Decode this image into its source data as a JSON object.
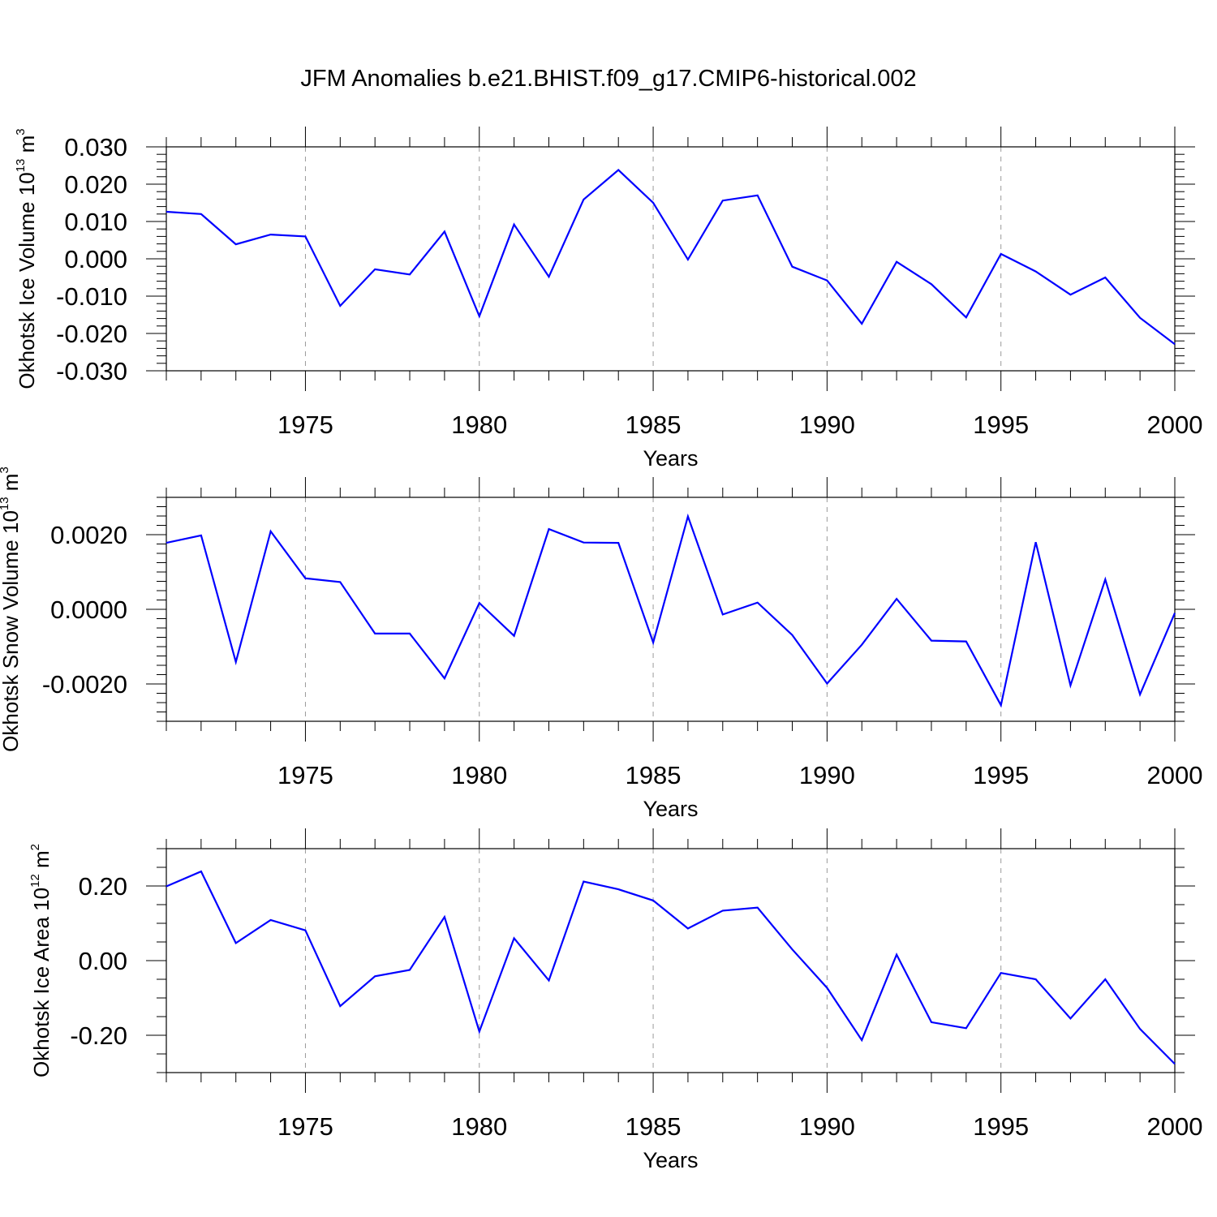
{
  "figure": {
    "title": "JFM Anomalies b.e21.BHIST.f09_g17.CMIP6-historical.002"
  },
  "chart_data": [
    {
      "type": "line",
      "xlabel": "Years",
      "ylabel": {
        "text": "Okhotsk Ice Volume 10",
        "exponent": "13",
        "unit": " m",
        "unit_exponent": "3"
      },
      "xlim": [
        1971,
        2000
      ],
      "ylim": [
        -0.03,
        0.03
      ],
      "xticks": [
        1975,
        1980,
        1985,
        1990,
        1995,
        2000
      ],
      "xtick_labels": [
        "1975",
        "1980",
        "1985",
        "1990",
        "1995",
        "2000"
      ],
      "yticks": [
        0.03,
        0.02,
        0.01,
        0.0,
        -0.01,
        -0.02,
        -0.03
      ],
      "ytick_labels": [
        "0.030",
        "0.020",
        "0.010",
        "0.000",
        "-0.010",
        "-0.020",
        "-0.030"
      ],
      "y_minor_step": 0.002,
      "grid": "dashed vertical lines at major x ticks",
      "series": [
        {
          "color": "#0000ff",
          "x": [
            1971,
            1972,
            1973,
            1974,
            1975,
            1976,
            1977,
            1978,
            1979,
            1980,
            1981,
            1982,
            1983,
            1984,
            1985,
            1986,
            1987,
            1988,
            1989,
            1990,
            1991,
            1992,
            1993,
            1994,
            1995,
            1996,
            1997,
            1998,
            1999,
            2000
          ],
          "y": [
            0.0126,
            0.012,
            0.0039,
            0.0065,
            0.006,
            -0.0126,
            -0.0028,
            -0.0042,
            0.0073,
            -0.0154,
            0.0092,
            -0.0048,
            0.0159,
            0.0238,
            0.015,
            -0.0002,
            0.0156,
            0.017,
            -0.0021,
            -0.0058,
            -0.0174,
            -0.0008,
            -0.0068,
            -0.0157,
            0.0013,
            -0.0034,
            -0.0096,
            -0.005,
            -0.0158,
            -0.0229
          ]
        }
      ]
    },
    {
      "type": "line",
      "xlabel": "Years",
      "ylabel": {
        "text": "Okhotsk Snow Volume 10",
        "exponent": "13",
        "unit": " m",
        "unit_exponent": "3"
      },
      "xlim": [
        1971,
        2000
      ],
      "ylim": [
        -0.003,
        0.003
      ],
      "xticks": [
        1975,
        1980,
        1985,
        1990,
        1995,
        2000
      ],
      "xtick_labels": [
        "1975",
        "1980",
        "1985",
        "1990",
        "1995",
        "2000"
      ],
      "yticks": [
        0.002,
        0.0,
        -0.002
      ],
      "ytick_labels": [
        "0.0020",
        "0.0000",
        "-0.0020"
      ],
      "y_minor_step": 0.00025,
      "grid": "dashed vertical lines at major x ticks",
      "series": [
        {
          "color": "#0000ff",
          "x": [
            1971,
            1972,
            1973,
            1974,
            1975,
            1976,
            1977,
            1978,
            1979,
            1980,
            1981,
            1982,
            1983,
            1984,
            1985,
            1986,
            1987,
            1988,
            1989,
            1990,
            1991,
            1992,
            1993,
            1994,
            1995,
            1996,
            1997,
            1998,
            1999,
            2000
          ],
          "y": [
            0.00178,
            0.00198,
            -0.00141,
            0.00209,
            0.00083,
            0.00073,
            -0.00065,
            -0.00065,
            -0.00185,
            0.00017,
            -0.00071,
            0.00215,
            0.00179,
            0.00178,
            -0.00089,
            0.00249,
            -0.00014,
            0.00018,
            -0.00069,
            -0.00199,
            -0.00095,
            0.00028,
            -0.00084,
            -0.00086,
            -0.00257,
            0.0018,
            -0.00204,
            0.0008,
            -0.00228,
            -0.0001
          ]
        }
      ]
    },
    {
      "type": "line",
      "xlabel": "Years",
      "ylabel": {
        "text": "Okhotsk Ice Area 10",
        "exponent": "12",
        "unit": " m",
        "unit_exponent": "2"
      },
      "xlim": [
        1971,
        2000
      ],
      "ylim": [
        -0.3,
        0.3
      ],
      "xticks": [
        1975,
        1980,
        1985,
        1990,
        1995,
        2000
      ],
      "xtick_labels": [
        "1975",
        "1980",
        "1985",
        "1990",
        "1995",
        "2000"
      ],
      "yticks": [
        0.2,
        0.0,
        -0.2
      ],
      "ytick_labels": [
        "0.20",
        "0.00",
        "-0.20"
      ],
      "y_minor_step": 0.05,
      "grid": "dashed vertical lines at major x ticks",
      "series": [
        {
          "color": "#0000ff",
          "x": [
            1971,
            1972,
            1973,
            1974,
            1975,
            1976,
            1977,
            1978,
            1979,
            1980,
            1981,
            1982,
            1983,
            1984,
            1985,
            1986,
            1987,
            1988,
            1989,
            1990,
            1991,
            1992,
            1993,
            1994,
            1995,
            1996,
            1997,
            1998,
            1999,
            2000
          ],
          "y": [
            0.199,
            0.239,
            0.047,
            0.109,
            0.081,
            -0.122,
            -0.042,
            -0.025,
            0.117,
            -0.19,
            0.06,
            -0.053,
            0.212,
            0.191,
            0.161,
            0.086,
            0.134,
            0.142,
            0.03,
            -0.073,
            -0.213,
            0.016,
            -0.165,
            -0.181,
            -0.033,
            -0.05,
            -0.155,
            -0.05,
            -0.183,
            -0.277
          ]
        }
      ]
    }
  ]
}
